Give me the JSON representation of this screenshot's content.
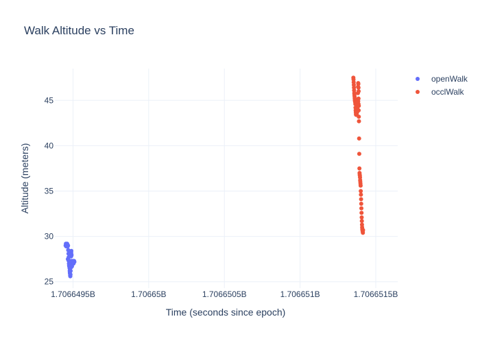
{
  "chart_data": {
    "type": "scatter",
    "title": "Walk Altitude vs Time",
    "xlabel": "Time (seconds since epoch)",
    "ylabel": "Altitude (meters)",
    "xlim": [
      1706649380,
      1706651645
    ],
    "ylim": [
      24.3,
      48.5
    ],
    "x_ticks": [
      {
        "value": 1706649500,
        "label": "1.7066495B"
      },
      {
        "value": 1706650000,
        "label": "1.70665B"
      },
      {
        "value": 1706650500,
        "label": "1.7066505B"
      },
      {
        "value": 1706651000,
        "label": "1.706651B"
      },
      {
        "value": 1706651500,
        "label": "1.7066515B"
      }
    ],
    "y_ticks": [
      25,
      30,
      35,
      40,
      45
    ],
    "grid": true,
    "legend_position": "top-right",
    "series": [
      {
        "name": "openWalk",
        "color": "#636efa",
        "points": [
          [
            1706649451,
            29.0
          ],
          [
            1706649453,
            29.2
          ],
          [
            1706649455,
            28.9
          ],
          [
            1706649457,
            29.1
          ],
          [
            1706649459,
            29.0
          ],
          [
            1706649461,
            29.2
          ],
          [
            1706649463,
            29.1
          ],
          [
            1706649465,
            28.9
          ],
          [
            1706649467,
            29.0
          ],
          [
            1706649468,
            28.5
          ],
          [
            1706649470,
            28.1
          ],
          [
            1706649471,
            27.7
          ],
          [
            1706649472,
            27.3
          ],
          [
            1706649473,
            27.0
          ],
          [
            1706649474,
            26.8
          ],
          [
            1706649475,
            26.7
          ],
          [
            1706649476,
            26.9
          ],
          [
            1706649477,
            26.5
          ],
          [
            1706649478,
            26.2
          ],
          [
            1706649479,
            26.0
          ],
          [
            1706649480,
            25.9
          ],
          [
            1706649481,
            25.7
          ],
          [
            1706649482,
            25.6
          ],
          [
            1706649483,
            25.8
          ],
          [
            1706649484,
            26.2
          ],
          [
            1706649485,
            26.8
          ],
          [
            1706649486,
            27.3
          ],
          [
            1706649487,
            27.8
          ],
          [
            1706649488,
            28.2
          ],
          [
            1706649489,
            28.4
          ],
          [
            1706649490,
            27.9
          ],
          [
            1706649491,
            27.3
          ],
          [
            1706649492,
            26.9
          ],
          [
            1706649493,
            26.7
          ],
          [
            1706649494,
            26.9
          ],
          [
            1706649496,
            27.0
          ],
          [
            1706649497,
            27.1
          ],
          [
            1706649499,
            27.2
          ],
          [
            1706649500,
            27.3
          ],
          [
            1706649502,
            27.2
          ],
          [
            1706649503,
            27.0
          ],
          [
            1706649505,
            27.1
          ],
          [
            1706649507,
            27.3
          ],
          [
            1706649509,
            27.2
          ],
          [
            1706649466,
            27.5
          ],
          [
            1706649469,
            27.4
          ],
          [
            1706649475,
            27.1
          ],
          [
            1706649480,
            26.4
          ],
          [
            1706649487,
            26.6
          ],
          [
            1706649490,
            28.0
          ]
        ]
      },
      {
        "name": "occlWalk",
        "color": "#ef553b",
        "points": [
          [
            1706651352,
            47.5
          ],
          [
            1706651353,
            47.3
          ],
          [
            1706651354,
            47.0
          ],
          [
            1706651355,
            46.7
          ],
          [
            1706651356,
            46.4
          ],
          [
            1706651357,
            46.1
          ],
          [
            1706651358,
            45.8
          ],
          [
            1706651359,
            45.6
          ],
          [
            1706651360,
            45.4
          ],
          [
            1706651361,
            45.2
          ],
          [
            1706651362,
            45.0
          ],
          [
            1706651363,
            44.9
          ],
          [
            1706651364,
            44.8
          ],
          [
            1706651365,
            44.6
          ],
          [
            1706651366,
            44.2
          ],
          [
            1706651367,
            43.9
          ],
          [
            1706651368,
            43.7
          ],
          [
            1706651369,
            43.5
          ],
          [
            1706651370,
            43.4
          ],
          [
            1706651371,
            43.7
          ],
          [
            1706651372,
            43.9
          ],
          [
            1706651373,
            43.6
          ],
          [
            1706651374,
            43.5
          ],
          [
            1706651375,
            43.8
          ],
          [
            1706651376,
            44.0
          ],
          [
            1706651377,
            43.7
          ],
          [
            1706651378,
            43.8
          ],
          [
            1706651379,
            44.2
          ],
          [
            1706651380,
            44.5
          ],
          [
            1706651381,
            45.0
          ],
          [
            1706651382,
            45.8
          ],
          [
            1706651383,
            46.5
          ],
          [
            1706651384,
            46.9
          ],
          [
            1706651385,
            46.8
          ],
          [
            1706651386,
            46.4
          ],
          [
            1706651387,
            46.0
          ],
          [
            1706651386,
            44.6
          ],
          [
            1706651388,
            44.4
          ],
          [
            1706651384,
            44.9
          ],
          [
            1706651386,
            45.2
          ],
          [
            1706651387,
            43.9
          ],
          [
            1706651388,
            43.2
          ],
          [
            1706651389,
            42.7
          ],
          [
            1706651390,
            40.8
          ],
          [
            1706651391,
            39.1
          ],
          [
            1706651392,
            37.5
          ],
          [
            1706651393,
            37.0
          ],
          [
            1706651394,
            36.8
          ],
          [
            1706651395,
            36.7
          ],
          [
            1706651396,
            36.5
          ],
          [
            1706651397,
            36.2
          ],
          [
            1706651398,
            36.0
          ],
          [
            1706651399,
            35.8
          ],
          [
            1706651400,
            35.6
          ],
          [
            1706651401,
            35.0
          ],
          [
            1706651402,
            34.6
          ],
          [
            1706651403,
            34.1
          ],
          [
            1706651404,
            33.6
          ],
          [
            1706651405,
            33.1
          ],
          [
            1706651406,
            32.6
          ],
          [
            1706651407,
            32.1
          ],
          [
            1706651408,
            31.7
          ],
          [
            1706651409,
            31.3
          ],
          [
            1706651410,
            31.0
          ],
          [
            1706651411,
            30.8
          ],
          [
            1706651412,
            30.7
          ],
          [
            1706651413,
            30.6
          ],
          [
            1706651414,
            30.5
          ],
          [
            1706651415,
            30.4
          ],
          [
            1706651416,
            30.7
          ]
        ]
      }
    ]
  }
}
